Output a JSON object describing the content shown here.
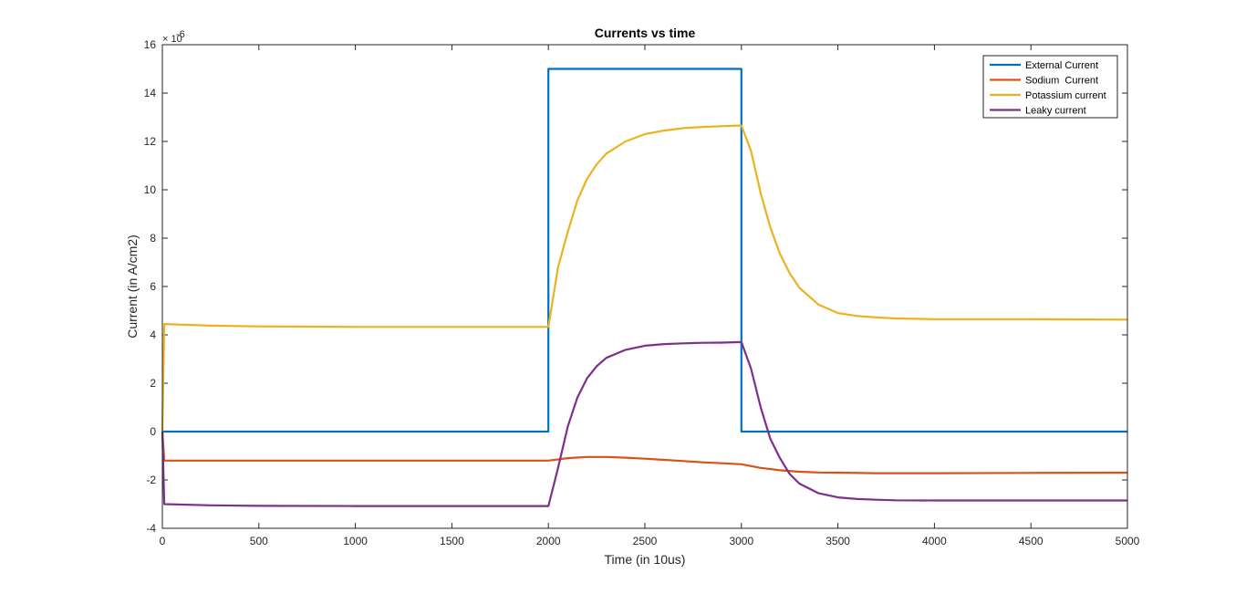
{
  "chart_data": {
    "type": "line",
    "title": "Currents vs time",
    "xlabel": "Time (in 10us)",
    "ylabel": "Current (in A/cm2)",
    "y_exponent_base": "× 10",
    "y_exponent_power": "-6",
    "xlim": [
      0,
      5000
    ],
    "ylim": [
      -4,
      16
    ],
    "x_ticks": [
      0,
      500,
      1000,
      1500,
      2000,
      2500,
      3000,
      3500,
      4000,
      4500,
      5000
    ],
    "y_ticks": [
      -4,
      -2,
      0,
      2,
      4,
      6,
      8,
      10,
      12,
      14,
      16
    ],
    "grid": false,
    "legend_position": "top-right",
    "series": [
      {
        "name": "External Current",
        "color": "#0072BD",
        "x": [
          0,
          2000,
          2000,
          3000,
          3000,
          5000
        ],
        "y": [
          0,
          0,
          15,
          15,
          0,
          0
        ]
      },
      {
        "name": "Sodium  Current",
        "color": "#D95319",
        "x": [
          0,
          10,
          500,
          1000,
          1500,
          2000,
          2100,
          2200,
          2300,
          2400,
          2500,
          2600,
          2700,
          2800,
          2900,
          3000,
          3100,
          3200,
          3300,
          3400,
          3500,
          3700,
          4000,
          4500,
          5000
        ],
        "y": [
          0,
          -1.2,
          -1.2,
          -1.2,
          -1.2,
          -1.2,
          -1.1,
          -1.05,
          -1.05,
          -1.08,
          -1.12,
          -1.17,
          -1.22,
          -1.27,
          -1.31,
          -1.35,
          -1.5,
          -1.6,
          -1.66,
          -1.69,
          -1.7,
          -1.72,
          -1.72,
          -1.71,
          -1.7
        ]
      },
      {
        "name": "Potassium current",
        "color": "#EDB120",
        "x": [
          0,
          10,
          250,
          500,
          1000,
          1500,
          2000,
          2050,
          2100,
          2150,
          2200,
          2250,
          2300,
          2400,
          2500,
          2600,
          2700,
          2800,
          2900,
          3000,
          3050,
          3100,
          3150,
          3200,
          3250,
          3300,
          3400,
          3500,
          3600,
          3700,
          3800,
          4000,
          4500,
          5000
        ],
        "y": [
          0,
          4.45,
          4.38,
          4.35,
          4.33,
          4.33,
          4.33,
          6.8,
          8.25,
          9.55,
          10.45,
          11.05,
          11.5,
          12.0,
          12.3,
          12.45,
          12.55,
          12.6,
          12.63,
          12.66,
          11.6,
          9.85,
          8.45,
          7.35,
          6.55,
          5.95,
          5.25,
          4.9,
          4.78,
          4.72,
          4.68,
          4.65,
          4.65,
          4.63
        ]
      },
      {
        "name": "Leaky current",
        "color": "#7E2F8E",
        "x": [
          0,
          10,
          250,
          500,
          1000,
          1500,
          2000,
          2050,
          2100,
          2150,
          2200,
          2250,
          2300,
          2400,
          2500,
          2600,
          2700,
          2800,
          2900,
          3000,
          3050,
          3100,
          3150,
          3200,
          3250,
          3300,
          3400,
          3500,
          3600,
          3700,
          3800,
          4000,
          4500,
          5000
        ],
        "y": [
          0,
          -3.0,
          -3.05,
          -3.07,
          -3.08,
          -3.08,
          -3.08,
          -1.5,
          0.2,
          1.4,
          2.2,
          2.7,
          3.05,
          3.38,
          3.55,
          3.62,
          3.65,
          3.67,
          3.68,
          3.7,
          2.6,
          1.0,
          -0.3,
          -1.1,
          -1.75,
          -2.15,
          -2.55,
          -2.72,
          -2.79,
          -2.82,
          -2.84,
          -2.85,
          -2.85,
          -2.85
        ]
      }
    ]
  }
}
